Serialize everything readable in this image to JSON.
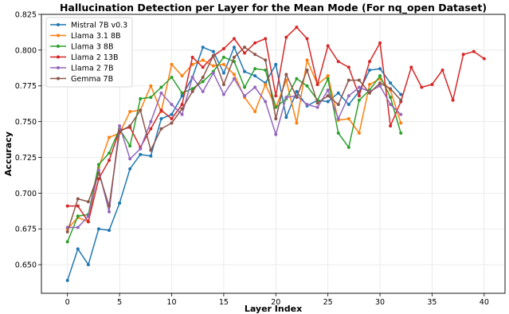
{
  "chart_data": {
    "type": "line",
    "title": "Hallucination Detection per Layer for the Mean Mode (For nq_open Dataset)",
    "xlabel": "Layer Index",
    "ylabel": "Accuracy",
    "xlim": [
      -2.5,
      42
    ],
    "ylim": [
      0.63,
      0.825
    ],
    "xticks": [
      0,
      5,
      10,
      15,
      20,
      25,
      30,
      35,
      40
    ],
    "yticks": [
      0.65,
      0.675,
      0.7,
      0.725,
      0.75,
      0.775,
      0.8,
      0.825
    ],
    "yticklabels": [
      "0.650",
      "0.675",
      "0.700",
      "0.725",
      "0.750",
      "0.775",
      "0.800",
      "0.825"
    ],
    "grid": true,
    "legend_position": "top-left",
    "series": [
      {
        "name": "Mistral 7B v0.3",
        "color": "#1f77b4",
        "x": [
          0,
          1,
          2,
          3,
          4,
          5,
          6,
          7,
          8,
          9,
          10,
          11,
          12,
          13,
          14,
          15,
          16,
          17,
          18,
          19,
          20,
          21,
          22,
          23,
          24,
          25,
          26,
          27,
          28,
          29,
          30,
          31,
          32
        ],
        "values": [
          0.639,
          0.661,
          0.65,
          0.675,
          0.674,
          0.693,
          0.717,
          0.727,
          0.726,
          0.752,
          0.755,
          0.768,
          0.781,
          0.802,
          0.799,
          0.784,
          0.802,
          0.785,
          0.782,
          0.777,
          0.79,
          0.753,
          0.771,
          0.761,
          0.765,
          0.764,
          0.77,
          0.762,
          0.771,
          0.786,
          0.787,
          0.777,
          0.769
        ]
      },
      {
        "name": "Llama 3.1 8B",
        "color": "#ff7f0e",
        "x": [
          0,
          1,
          2,
          3,
          4,
          5,
          6,
          7,
          8,
          9,
          10,
          11,
          12,
          13,
          14,
          15,
          16,
          17,
          18,
          19,
          20,
          21,
          22,
          23,
          24,
          25,
          26,
          27,
          28,
          29,
          30,
          31,
          32
        ],
        "values": [
          0.675,
          0.683,
          0.68,
          0.718,
          0.739,
          0.742,
          0.757,
          0.758,
          0.775,
          0.757,
          0.79,
          0.782,
          0.79,
          0.793,
          0.789,
          0.79,
          0.783,
          0.767,
          0.757,
          0.776,
          0.76,
          0.779,
          0.749,
          0.793,
          0.776,
          0.782,
          0.751,
          0.752,
          0.742,
          0.776,
          0.78,
          0.772,
          0.749
        ]
      },
      {
        "name": "Llama 3 8B",
        "color": "#2ca02c",
        "x": [
          0,
          1,
          2,
          3,
          4,
          5,
          6,
          7,
          8,
          9,
          10,
          11,
          12,
          13,
          14,
          15,
          16,
          17,
          18,
          19,
          20,
          21,
          22,
          23,
          24,
          25,
          26,
          27,
          28,
          29,
          30,
          31,
          32
        ],
        "values": [
          0.666,
          0.684,
          0.685,
          0.72,
          0.728,
          0.745,
          0.733,
          0.766,
          0.767,
          0.774,
          0.781,
          0.77,
          0.773,
          0.778,
          0.785,
          0.795,
          0.792,
          0.774,
          0.787,
          0.786,
          0.76,
          0.766,
          0.78,
          0.775,
          0.765,
          0.78,
          0.742,
          0.732,
          0.765,
          0.772,
          0.782,
          0.767,
          0.742
        ]
      },
      {
        "name": "Llama 2 13B",
        "color": "#d62728",
        "x": [
          0,
          1,
          2,
          3,
          4,
          5,
          6,
          7,
          8,
          9,
          10,
          11,
          12,
          13,
          14,
          15,
          16,
          17,
          18,
          19,
          20,
          21,
          22,
          23,
          24,
          25,
          26,
          27,
          28,
          29,
          30,
          31,
          32,
          33,
          34,
          35,
          36,
          37,
          38,
          39,
          40
        ],
        "values": [
          0.691,
          0.691,
          0.68,
          0.71,
          0.723,
          0.744,
          0.746,
          0.732,
          0.745,
          0.758,
          0.752,
          0.762,
          0.795,
          0.788,
          0.796,
          0.801,
          0.808,
          0.798,
          0.805,
          0.808,
          0.768,
          0.809,
          0.816,
          0.808,
          0.776,
          0.803,
          0.792,
          0.788,
          0.768,
          0.792,
          0.805,
          0.747,
          0.764,
          0.788,
          0.774,
          0.776,
          0.786,
          0.765,
          0.797,
          0.799,
          0.794
        ]
      },
      {
        "name": "Llama 2 7B",
        "color": "#9467bd",
        "x": [
          0,
          1,
          2,
          3,
          4,
          5,
          6,
          7,
          8,
          9,
          10,
          11,
          12,
          13,
          14,
          15,
          16,
          17,
          18,
          19,
          20,
          21,
          22,
          23,
          24,
          25,
          26,
          27,
          28,
          29,
          30,
          31,
          32
        ],
        "values": [
          0.676,
          0.676,
          0.684,
          0.716,
          0.687,
          0.747,
          0.724,
          0.731,
          0.75,
          0.77,
          0.762,
          0.755,
          0.781,
          0.771,
          0.784,
          0.769,
          0.78,
          0.768,
          0.774,
          0.764,
          0.741,
          0.767,
          0.768,
          0.762,
          0.76,
          0.772,
          0.752,
          0.768,
          0.774,
          0.771,
          0.775,
          0.762,
          0.755
        ]
      },
      {
        "name": "Gemma 7B",
        "color": "#8c564b",
        "x": [
          0,
          1,
          2,
          3,
          4,
          5,
          6,
          7,
          8,
          9,
          10,
          11,
          12,
          13,
          14,
          15,
          16,
          17,
          18,
          19,
          20,
          21,
          22,
          23,
          24,
          25,
          26,
          27,
          28,
          29,
          30,
          31,
          32
        ],
        "values": [
          0.673,
          0.696,
          0.694,
          0.714,
          0.691,
          0.743,
          0.747,
          0.758,
          0.73,
          0.745,
          0.749,
          0.759,
          0.771,
          0.781,
          0.796,
          0.776,
          0.795,
          0.802,
          0.797,
          0.793,
          0.752,
          0.783,
          0.767,
          0.786,
          0.763,
          0.768,
          0.762,
          0.779,
          0.779,
          0.77,
          0.777,
          0.773,
          0.765
        ]
      }
    ]
  }
}
